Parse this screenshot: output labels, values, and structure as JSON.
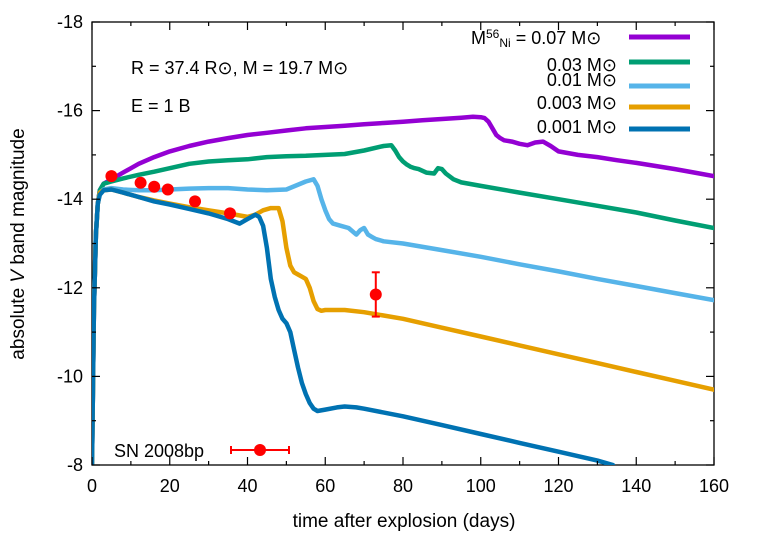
{
  "chart_data": {
    "type": "line",
    "xlabel": "time after explosion (days)",
    "ylabel_parts": {
      "prefix": "absolute ",
      "italic": "V",
      "suffix": " band magnitude"
    },
    "xlim": [
      0,
      160
    ],
    "ylim": [
      -8,
      -18
    ],
    "y_inverted": true,
    "grid": false,
    "legend_position": "top-right",
    "x_ticks": [
      {
        "value": 0,
        "label": "0"
      },
      {
        "value": 20,
        "label": "20"
      },
      {
        "value": 40,
        "label": "40"
      },
      {
        "value": 60,
        "label": "60"
      },
      {
        "value": 80,
        "label": "80"
      },
      {
        "value": 100,
        "label": "100"
      },
      {
        "value": 120,
        "label": "120"
      },
      {
        "value": 140,
        "label": "140"
      },
      {
        "value": 160,
        "label": "160"
      }
    ],
    "y_ticks": [
      {
        "value": -8,
        "label": "-8"
      },
      {
        "value": -10,
        "label": "-10"
      },
      {
        "value": -12,
        "label": "-12"
      },
      {
        "value": -14,
        "label": "-14"
      },
      {
        "value": -16,
        "label": "-16"
      },
      {
        "value": -18,
        "label": "-18"
      }
    ],
    "annotations": [
      {
        "text": "R = 37.4 R⊙, M = 19.7 M⊙",
        "x": 10,
        "y": -17.05
      },
      {
        "text": "E = 1 B",
        "x": 10,
        "y": -16.1
      }
    ],
    "legend_header": {
      "prefix": "M",
      "sup": "56",
      "sub": "Ni",
      "suffix": " = 0.07 M⊙"
    },
    "series": [
      {
        "name": "0.07 M⊙",
        "color": "#9400d3",
        "x": [
          0,
          0.5,
          1,
          1.5,
          2,
          3,
          5,
          8,
          12,
          16,
          20,
          25,
          30,
          35,
          40,
          45,
          50,
          55,
          60,
          65,
          70,
          75,
          80,
          85,
          90,
          95,
          98,
          100,
          101,
          102,
          103,
          104,
          105,
          106,
          108,
          110,
          112,
          114,
          116,
          118,
          120,
          125,
          130,
          135,
          140,
          145,
          150,
          155,
          160
        ],
        "y": [
          -8,
          -11.5,
          -13.2,
          -13.9,
          -14.2,
          -14.35,
          -14.45,
          -14.6,
          -14.8,
          -14.95,
          -15.08,
          -15.2,
          -15.3,
          -15.38,
          -15.45,
          -15.5,
          -15.55,
          -15.6,
          -15.63,
          -15.66,
          -15.69,
          -15.72,
          -15.75,
          -15.78,
          -15.81,
          -15.84,
          -15.86,
          -15.85,
          -15.83,
          -15.75,
          -15.6,
          -15.45,
          -15.38,
          -15.33,
          -15.3,
          -15.25,
          -15.22,
          -15.28,
          -15.3,
          -15.2,
          -15.08,
          -15.0,
          -14.95,
          -14.88,
          -14.82,
          -14.75,
          -14.68,
          -14.6,
          -14.52
        ]
      },
      {
        "name": "0.03 M⊙",
        "color": "#009e73",
        "x": [
          0,
          0.5,
          1,
          1.5,
          2,
          3,
          5,
          8,
          12,
          16,
          20,
          25,
          30,
          35,
          40,
          45,
          50,
          55,
          60,
          65,
          70,
          75,
          77,
          78,
          79,
          80,
          81,
          82,
          83,
          84,
          86,
          88,
          89,
          90,
          91,
          93,
          95,
          100,
          110,
          120,
          130,
          140,
          150,
          160
        ],
        "y": [
          -8,
          -11.5,
          -13.2,
          -13.9,
          -14.2,
          -14.35,
          -14.4,
          -14.47,
          -14.55,
          -14.62,
          -14.7,
          -14.8,
          -14.85,
          -14.88,
          -14.9,
          -14.95,
          -14.97,
          -14.98,
          -15.0,
          -15.02,
          -15.1,
          -15.2,
          -15.22,
          -15.1,
          -14.95,
          -14.85,
          -14.78,
          -14.73,
          -14.7,
          -14.68,
          -14.6,
          -14.58,
          -14.7,
          -14.68,
          -14.58,
          -14.45,
          -14.38,
          -14.3,
          -14.15,
          -14.0,
          -13.85,
          -13.7,
          -13.52,
          -13.35
        ]
      },
      {
        "name": "0.01 M⊙",
        "color": "#56b4e9",
        "x": [
          0,
          0.5,
          1,
          1.5,
          2,
          3,
          5,
          8,
          12,
          16,
          20,
          25,
          30,
          35,
          40,
          45,
          50,
          55,
          57,
          58,
          59,
          60,
          61,
          62,
          64,
          66,
          68,
          69,
          70,
          71,
          72,
          73,
          75,
          80,
          90,
          100,
          110,
          120,
          130,
          140,
          150,
          160
        ],
        "y": [
          -8,
          -11.5,
          -13.2,
          -13.9,
          -14.15,
          -14.22,
          -14.25,
          -14.22,
          -14.2,
          -14.2,
          -14.22,
          -14.24,
          -14.25,
          -14.25,
          -14.22,
          -14.2,
          -14.22,
          -14.4,
          -14.45,
          -14.3,
          -14.0,
          -13.75,
          -13.55,
          -13.45,
          -13.4,
          -13.35,
          -13.2,
          -13.3,
          -13.35,
          -13.2,
          -13.15,
          -13.1,
          -13.05,
          -13.0,
          -12.85,
          -12.7,
          -12.53,
          -12.37,
          -12.2,
          -12.04,
          -11.88,
          -11.72
        ]
      },
      {
        "name": "0.003 M⊙",
        "color": "#e69f00",
        "x": [
          0,
          0.5,
          1,
          1.5,
          2,
          3,
          5,
          8,
          12,
          16,
          20,
          25,
          30,
          35,
          40,
          42,
          44,
          46,
          48,
          49,
          50,
          51,
          52,
          53,
          54,
          55,
          56,
          57,
          58,
          59,
          60,
          65,
          70,
          80,
          90,
          100,
          110,
          120,
          130,
          140,
          150,
          160
        ],
        "y": [
          -8,
          -11.5,
          -13.2,
          -13.9,
          -14.15,
          -14.2,
          -14.22,
          -14.15,
          -14.05,
          -13.97,
          -13.9,
          -13.82,
          -13.75,
          -13.68,
          -13.6,
          -13.65,
          -13.75,
          -13.8,
          -13.8,
          -13.5,
          -12.9,
          -12.5,
          -12.35,
          -12.3,
          -12.25,
          -12.2,
          -12.0,
          -11.7,
          -11.52,
          -11.48,
          -11.5,
          -11.5,
          -11.45,
          -11.3,
          -11.1,
          -10.9,
          -10.7,
          -10.5,
          -10.3,
          -10.1,
          -9.9,
          -9.7
        ]
      },
      {
        "name": "0.001 M⊙",
        "color": "#0072b2",
        "x": [
          0,
          0.5,
          1,
          1.5,
          2,
          3,
          5,
          8,
          12,
          16,
          20,
          25,
          30,
          35,
          38,
          40,
          42,
          43,
          44,
          45,
          46,
          47,
          48,
          49,
          50,
          51,
          52,
          53,
          54,
          55,
          56,
          57,
          58,
          60,
          63,
          65,
          68,
          70,
          80,
          90,
          100,
          110,
          120,
          130,
          134
        ],
        "y": [
          -8,
          -11.5,
          -13.2,
          -13.9,
          -14.1,
          -14.2,
          -14.22,
          -14.15,
          -14.05,
          -13.95,
          -13.88,
          -13.78,
          -13.68,
          -13.55,
          -13.45,
          -13.55,
          -13.65,
          -13.6,
          -13.4,
          -12.9,
          -12.2,
          -11.8,
          -11.5,
          -11.3,
          -11.2,
          -11.0,
          -10.6,
          -10.2,
          -9.85,
          -9.6,
          -9.4,
          -9.27,
          -9.22,
          -9.25,
          -9.3,
          -9.32,
          -9.3,
          -9.27,
          -9.1,
          -8.9,
          -8.7,
          -8.5,
          -8.3,
          -8.1,
          -8.0
        ]
      }
    ],
    "observations": {
      "name": "SN 2008bp",
      "color": "#ff0000",
      "points": [
        {
          "x": 5,
          "y": -14.52
        },
        {
          "x": 12.5,
          "y": -14.37
        },
        {
          "x": 16,
          "y": -14.28
        },
        {
          "x": 19.5,
          "y": -14.22
        },
        {
          "x": 26.5,
          "y": -13.95
        },
        {
          "x": 35.5,
          "y": -13.68
        },
        {
          "x": 73,
          "y": -11.85,
          "yerr": 0.5
        }
      ]
    }
  }
}
